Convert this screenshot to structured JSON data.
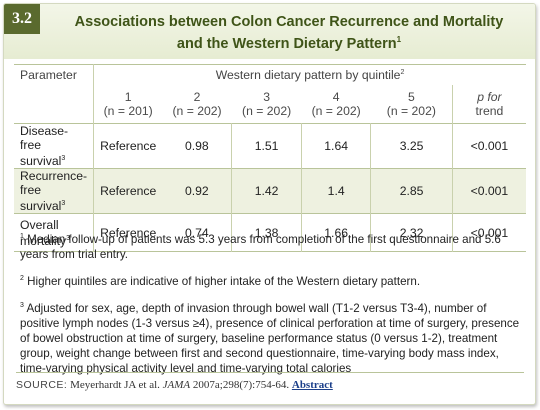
{
  "table_number": "3.2",
  "title": {
    "line1": "Associations between Colon Cancer Recurrence and Mortality",
    "line2": "and the Western Dietary Pattern",
    "marker": "1"
  },
  "table": {
    "param_header": "Parameter",
    "group_header": "Western dietary pattern by quintile",
    "group_marker": "2",
    "quintiles": [
      {
        "label": "1",
        "n": "(n = 201)"
      },
      {
        "label": "2",
        "n": "(n = 202)"
      },
      {
        "label": "3",
        "n": "(n = 202)"
      },
      {
        "label": "4",
        "n": "(n = 202)"
      },
      {
        "label": "5",
        "n": "(n = 202)"
      }
    ],
    "ptrend_line1": "p for",
    "ptrend_line2": "trend",
    "rows": [
      {
        "label1": "Disease-",
        "label2": "free survival",
        "marker": "3",
        "values": [
          "Reference",
          "0.98",
          "1.51",
          "1.64",
          "3.25",
          "<0.001"
        ]
      },
      {
        "label1": "Recurrence-",
        "label2": "free survival",
        "marker": "3",
        "values": [
          "Reference",
          "0.92",
          "1.42",
          "1.4",
          "2.85",
          "<0.001"
        ]
      },
      {
        "label1": "Overall",
        "label2": "mortality",
        "marker": "3",
        "values": [
          "Reference",
          "0.74",
          "1.38",
          "1.66",
          "2.32",
          "<0.001"
        ]
      }
    ]
  },
  "footnotes": [
    {
      "marker": "1",
      "text": "Median follow-up of patients was 5.3 years from completion of the first questionnaire and 5.6 years from trial entry."
    },
    {
      "marker": "2",
      "text": "Higher quintiles are indicative of higher intake of the Western dietary pattern."
    },
    {
      "marker": "3",
      "text": "Adjusted for sex, age, depth of invasion through bowel wall (T1-2 versus T3-4), number of positive lymph nodes (1-3 versus ≥4), presence of clinical perforation at time of surgery, presence of bowel obstruction at time of surgery, baseline performance status (0 versus 1-2), treatment group, weight change between first and second questionnaire, time-varying body mass index, time-varying physical activity level and time-varying total calories"
    }
  ],
  "source": {
    "label": "SOURCE:",
    "text_before": "Meyerhardt JA et al.",
    "journal": "JAMA",
    "text_after": "2007a;298(7):754-64.",
    "link": "Abstract"
  },
  "colors": {
    "accent": "#5a6a2e",
    "title": "#3f5418",
    "row_shade": "#eef1e0",
    "link": "#1b3f8a"
  }
}
